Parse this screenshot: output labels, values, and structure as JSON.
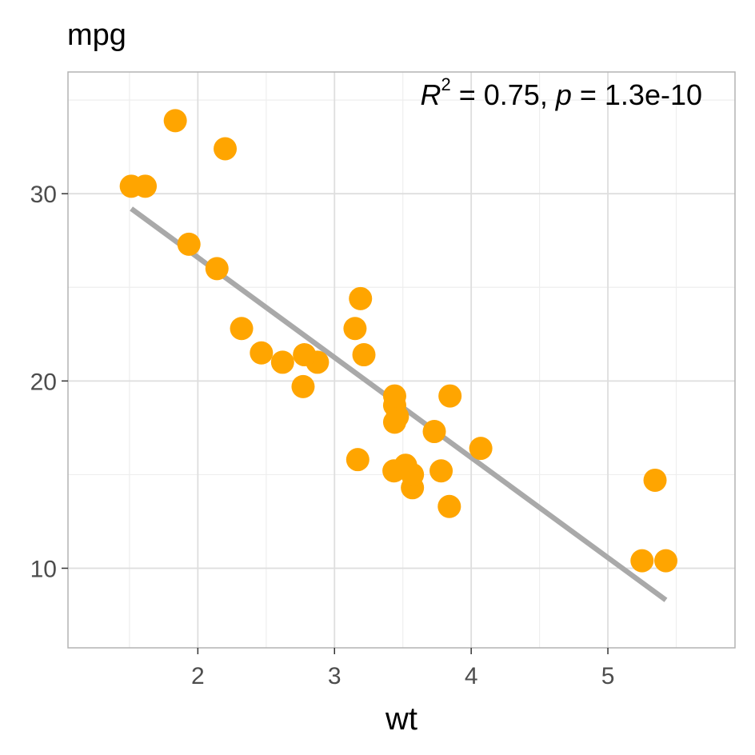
{
  "chart_data": {
    "type": "scatter",
    "title": "mpg",
    "xlabel": "wt",
    "ylabel": "",
    "xlim": [
      1.05,
      5.93
    ],
    "ylim": [
      5.75,
      36.5
    ],
    "x_ticks": [
      2,
      3,
      4,
      5
    ],
    "y_ticks": [
      10,
      20,
      30
    ],
    "grid": true,
    "legend": "none",
    "colors": {
      "points": "#FFA500",
      "fit_line": "#A9A9A9",
      "panel_border": "#B3B3B3",
      "grid_major": "#DEDEDE",
      "grid_minor": "#EEEEEE"
    },
    "annotation": {
      "r_symbol": "R",
      "r_exponent": "2",
      "r_value_text": " = 0.75, ",
      "p_symbol": "p",
      "p_value_text": " = 1.3e-10"
    },
    "fit": {
      "x": [
        1.513,
        5.424
      ],
      "y": [
        29.2,
        8.3
      ]
    },
    "points": [
      {
        "x": 2.62,
        "y": 21.0
      },
      {
        "x": 2.875,
        "y": 21.0
      },
      {
        "x": 2.32,
        "y": 22.8
      },
      {
        "x": 3.215,
        "y": 21.4
      },
      {
        "x": 3.44,
        "y": 18.7
      },
      {
        "x": 3.46,
        "y": 18.1
      },
      {
        "x": 3.57,
        "y": 14.3
      },
      {
        "x": 3.19,
        "y": 24.4
      },
      {
        "x": 3.15,
        "y": 22.8
      },
      {
        "x": 3.44,
        "y": 19.2
      },
      {
        "x": 3.44,
        "y": 17.8
      },
      {
        "x": 4.07,
        "y": 16.4
      },
      {
        "x": 3.73,
        "y": 17.3
      },
      {
        "x": 3.78,
        "y": 15.2
      },
      {
        "x": 5.25,
        "y": 10.4
      },
      {
        "x": 5.424,
        "y": 10.4
      },
      {
        "x": 5.345,
        "y": 14.7
      },
      {
        "x": 2.2,
        "y": 32.4
      },
      {
        "x": 1.615,
        "y": 30.4
      },
      {
        "x": 1.835,
        "y": 33.9
      },
      {
        "x": 2.465,
        "y": 21.5
      },
      {
        "x": 3.52,
        "y": 15.5
      },
      {
        "x": 3.435,
        "y": 15.2
      },
      {
        "x": 3.84,
        "y": 13.3
      },
      {
        "x": 3.845,
        "y": 19.2
      },
      {
        "x": 1.935,
        "y": 27.3
      },
      {
        "x": 2.14,
        "y": 26.0
      },
      {
        "x": 1.513,
        "y": 30.4
      },
      {
        "x": 3.17,
        "y": 15.8
      },
      {
        "x": 2.77,
        "y": 19.7
      },
      {
        "x": 3.57,
        "y": 15.0
      },
      {
        "x": 2.78,
        "y": 21.4
      }
    ]
  }
}
